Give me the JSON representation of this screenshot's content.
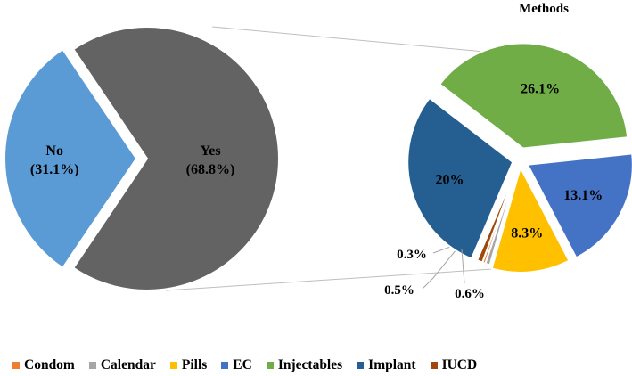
{
  "chart_data": [
    {
      "type": "pie",
      "title": "",
      "slices": [
        {
          "label": "No",
          "percent_label": "(31.1%)",
          "value": 31.1,
          "color": "#5b9bd5"
        },
        {
          "label": "Yes",
          "percent_label": "(68.8%)",
          "value": 68.8,
          "color": "#636363"
        }
      ]
    },
    {
      "type": "pie",
      "title": "Methods",
      "slices": [
        {
          "label": "Condom",
          "value": 0.3,
          "value_label": "0.3%",
          "color": "#ed7d31"
        },
        {
          "label": "Calendar",
          "value": 0.5,
          "value_label": "0.5%",
          "color": "#a5a5a5"
        },
        {
          "label": "Pills",
          "value": 8.3,
          "value_label": "8.3%",
          "color": "#ffc000"
        },
        {
          "label": "EC",
          "value": 13.1,
          "value_label": "13.1%",
          "color": "#4472c4"
        },
        {
          "label": "Injectables",
          "value": 26.1,
          "value_label": "26.1%",
          "color": "#70ad47"
        },
        {
          "label": "Implant",
          "value": 20,
          "value_label": "20%",
          "color": "#255e91"
        },
        {
          "label": "IUCD",
          "value": 0.6,
          "value_label": "0.6%",
          "color": "#9e480e"
        }
      ],
      "legend_position": "bottom"
    }
  ]
}
